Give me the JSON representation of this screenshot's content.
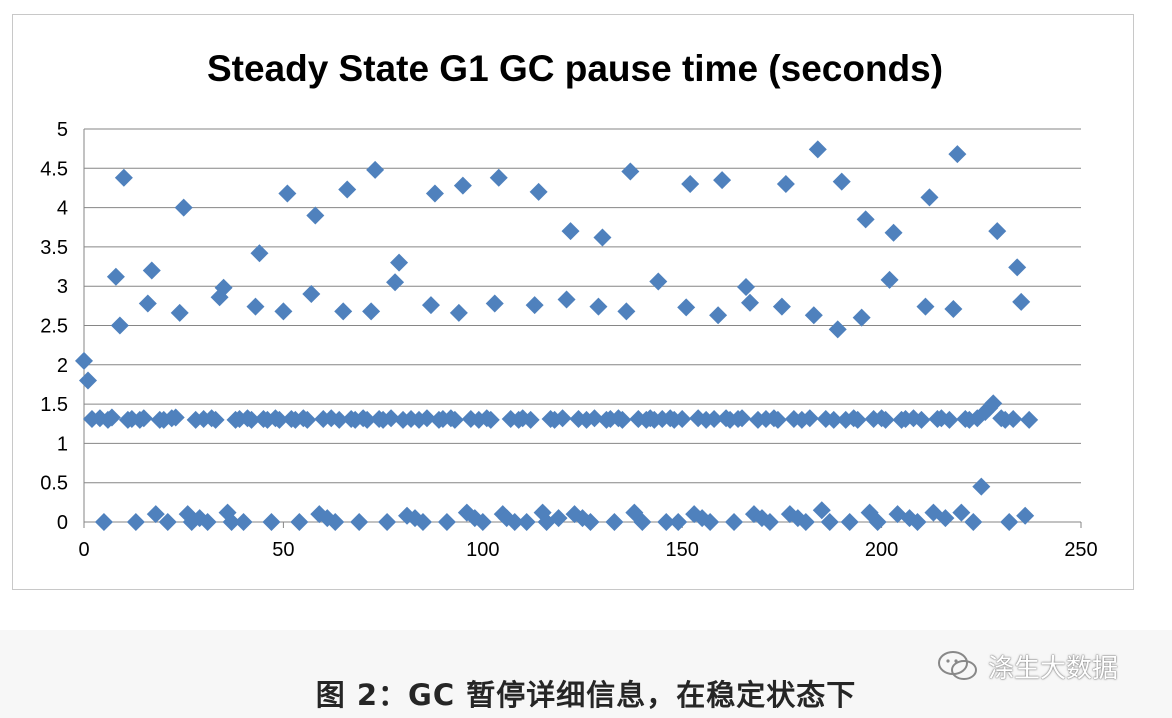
{
  "caption": "图 2：GC 暂停详细信息，在稳定状态下",
  "watermark": {
    "text": "涤生大数据",
    "icon": "wechat-bubble-icon"
  },
  "colors": {
    "marker": "#4f81bd",
    "grid": "#868686",
    "text": "#000000"
  },
  "chart_data": {
    "type": "scatter",
    "title": "Steady State G1 GC pause time (seconds)",
    "xlabel": "",
    "ylabel": "",
    "xlim": [
      0,
      250
    ],
    "ylim": [
      0,
      5
    ],
    "xticks": [
      "0",
      "50",
      "100",
      "150",
      "200",
      "250"
    ],
    "yticks": [
      "0",
      "0.5",
      "1",
      "1.5",
      "2",
      "2.5",
      "3",
      "3.5",
      "4",
      "4.5",
      "5"
    ],
    "grid": "horizontal",
    "legend": "none",
    "marker": "diamond",
    "series": [
      {
        "name": "",
        "points": [
          [
            0,
            2.05
          ],
          [
            1,
            1.8
          ],
          [
            2,
            1.31
          ],
          [
            4,
            1.32
          ],
          [
            5,
            0.0
          ],
          [
            6,
            1.3
          ],
          [
            7,
            1.33
          ],
          [
            8,
            3.12
          ],
          [
            9,
            2.5
          ],
          [
            10,
            4.38
          ],
          [
            11,
            1.3
          ],
          [
            12,
            1.31
          ],
          [
            13,
            0.0
          ],
          [
            14,
            1.3
          ],
          [
            15,
            1.32
          ],
          [
            16,
            2.78
          ],
          [
            17,
            3.2
          ],
          [
            18,
            0.1
          ],
          [
            19,
            1.3
          ],
          [
            20,
            1.3
          ],
          [
            21,
            0.0
          ],
          [
            22,
            1.32
          ],
          [
            23,
            1.33
          ],
          [
            24,
            2.66
          ],
          [
            25,
            4.0
          ],
          [
            26,
            0.1
          ],
          [
            27,
            0.0
          ],
          [
            28,
            1.3
          ],
          [
            29,
            0.05
          ],
          [
            30,
            1.31
          ],
          [
            31,
            0.0
          ],
          [
            32,
            1.32
          ],
          [
            33,
            1.3
          ],
          [
            34,
            2.86
          ],
          [
            35,
            2.98
          ],
          [
            36,
            0.12
          ],
          [
            37,
            0.0
          ],
          [
            38,
            1.3
          ],
          [
            39,
            1.31
          ],
          [
            40,
            0.0
          ],
          [
            41,
            1.32
          ],
          [
            42,
            1.3
          ],
          [
            43,
            2.74
          ],
          [
            44,
            3.42
          ],
          [
            45,
            1.31
          ],
          [
            46,
            1.3
          ],
          [
            47,
            0.0
          ],
          [
            48,
            1.32
          ],
          [
            49,
            1.3
          ],
          [
            50,
            2.68
          ],
          [
            51,
            4.18
          ],
          [
            52,
            1.31
          ],
          [
            53,
            1.3
          ],
          [
            54,
            0.0
          ],
          [
            55,
            1.32
          ],
          [
            56,
            1.3
          ],
          [
            57,
            2.9
          ],
          [
            58,
            3.9
          ],
          [
            59,
            0.1
          ],
          [
            60,
            1.31
          ],
          [
            61,
            0.05
          ],
          [
            62,
            1.32
          ],
          [
            63,
            0.0
          ],
          [
            64,
            1.3
          ],
          [
            65,
            2.68
          ],
          [
            66,
            4.23
          ],
          [
            67,
            1.31
          ],
          [
            68,
            1.3
          ],
          [
            69,
            0.0
          ],
          [
            70,
            1.32
          ],
          [
            71,
            1.3
          ],
          [
            72,
            2.68
          ],
          [
            73,
            4.48
          ],
          [
            74,
            1.31
          ],
          [
            75,
            1.3
          ],
          [
            76,
            0.0
          ],
          [
            77,
            1.32
          ],
          [
            78,
            3.05
          ],
          [
            79,
            3.3
          ],
          [
            80,
            1.3
          ],
          [
            81,
            0.08
          ],
          [
            82,
            1.31
          ],
          [
            83,
            0.05
          ],
          [
            84,
            1.3
          ],
          [
            85,
            0.0
          ],
          [
            86,
            1.32
          ],
          [
            87,
            2.76
          ],
          [
            88,
            4.18
          ],
          [
            89,
            1.3
          ],
          [
            90,
            1.31
          ],
          [
            91,
            0.0
          ],
          [
            92,
            1.32
          ],
          [
            93,
            1.3
          ],
          [
            94,
            2.66
          ],
          [
            95,
            4.28
          ],
          [
            96,
            0.12
          ],
          [
            97,
            1.31
          ],
          [
            98,
            0.05
          ],
          [
            99,
            1.3
          ],
          [
            100,
            0.0
          ],
          [
            101,
            1.32
          ],
          [
            102,
            1.3
          ],
          [
            103,
            2.78
          ],
          [
            104,
            4.38
          ],
          [
            105,
            0.1
          ],
          [
            106,
            0.05
          ],
          [
            107,
            1.31
          ],
          [
            108,
            0.0
          ],
          [
            109,
            1.3
          ],
          [
            110,
            1.32
          ],
          [
            111,
            0.0
          ],
          [
            112,
            1.3
          ],
          [
            113,
            2.76
          ],
          [
            114,
            4.2
          ],
          [
            115,
            0.12
          ],
          [
            116,
            0.0
          ],
          [
            117,
            1.31
          ],
          [
            118,
            1.3
          ],
          [
            119,
            0.05
          ],
          [
            120,
            1.32
          ],
          [
            121,
            2.83
          ],
          [
            122,
            3.7
          ],
          [
            123,
            0.1
          ],
          [
            124,
            1.31
          ],
          [
            125,
            0.05
          ],
          [
            126,
            1.3
          ],
          [
            127,
            0.0
          ],
          [
            128,
            1.32
          ],
          [
            129,
            2.74
          ],
          [
            130,
            3.62
          ],
          [
            131,
            1.3
          ],
          [
            132,
            1.31
          ],
          [
            133,
            0.0
          ],
          [
            134,
            1.32
          ],
          [
            135,
            1.3
          ],
          [
            136,
            2.68
          ],
          [
            137,
            4.46
          ],
          [
            138,
            0.12
          ],
          [
            139,
            1.31
          ],
          [
            140,
            0.0
          ],
          [
            141,
            1.3
          ],
          [
            142,
            1.32
          ],
          [
            143,
            1.3
          ],
          [
            144,
            3.06
          ],
          [
            145,
            1.31
          ],
          [
            146,
            0.0
          ],
          [
            147,
            1.32
          ],
          [
            148,
            1.3
          ],
          [
            149,
            0.0
          ],
          [
            150,
            1.31
          ],
          [
            151,
            2.73
          ],
          [
            152,
            4.3
          ],
          [
            153,
            0.1
          ],
          [
            154,
            1.32
          ],
          [
            155,
            0.05
          ],
          [
            156,
            1.3
          ],
          [
            157,
            0.0
          ],
          [
            158,
            1.31
          ],
          [
            159,
            2.63
          ],
          [
            160,
            4.35
          ],
          [
            161,
            1.32
          ],
          [
            162,
            1.3
          ],
          [
            163,
            0.0
          ],
          [
            164,
            1.31
          ],
          [
            165,
            1.32
          ],
          [
            166,
            2.99
          ],
          [
            167,
            2.79
          ],
          [
            168,
            0.1
          ],
          [
            169,
            1.3
          ],
          [
            170,
            0.05
          ],
          [
            171,
            1.31
          ],
          [
            172,
            0.0
          ],
          [
            173,
            1.32
          ],
          [
            174,
            1.3
          ],
          [
            175,
            2.74
          ],
          [
            176,
            4.3
          ],
          [
            177,
            0.1
          ],
          [
            178,
            1.31
          ],
          [
            179,
            0.05
          ],
          [
            180,
            1.3
          ],
          [
            181,
            0.0
          ],
          [
            182,
            1.32
          ],
          [
            183,
            2.63
          ],
          [
            184,
            4.74
          ],
          [
            185,
            0.15
          ],
          [
            186,
            1.31
          ],
          [
            187,
            0.0
          ],
          [
            188,
            1.3
          ],
          [
            189,
            2.45
          ],
          [
            190,
            4.33
          ],
          [
            191,
            1.3
          ],
          [
            192,
            0.0
          ],
          [
            193,
            1.32
          ],
          [
            194,
            1.3
          ],
          [
            195,
            2.6
          ],
          [
            196,
            3.85
          ],
          [
            197,
            0.12
          ],
          [
            198,
            1.31
          ],
          [
            199,
            0.0
          ],
          [
            200,
            1.32
          ],
          [
            201,
            1.3
          ],
          [
            202,
            3.08
          ],
          [
            203,
            3.68
          ],
          [
            204,
            0.1
          ],
          [
            205,
            1.3
          ],
          [
            206,
            1.31
          ],
          [
            207,
            0.05
          ],
          [
            208,
            1.32
          ],
          [
            209,
            0.0
          ],
          [
            210,
            1.3
          ],
          [
            211,
            2.74
          ],
          [
            212,
            4.13
          ],
          [
            213,
            0.12
          ],
          [
            214,
            1.31
          ],
          [
            215,
            1.32
          ],
          [
            216,
            0.05
          ],
          [
            217,
            1.3
          ],
          [
            218,
            2.71
          ],
          [
            219,
            4.68
          ],
          [
            220,
            0.12
          ],
          [
            221,
            1.31
          ],
          [
            222,
            1.3
          ],
          [
            223,
            0.0
          ],
          [
            224,
            1.32
          ],
          [
            225,
            0.45
          ],
          [
            226,
            1.4
          ],
          [
            227,
            1.45
          ],
          [
            228,
            1.51
          ],
          [
            229,
            3.7
          ],
          [
            230,
            1.32
          ],
          [
            231,
            1.3
          ],
          [
            232,
            0.0
          ],
          [
            233,
            1.31
          ],
          [
            234,
            3.24
          ],
          [
            235,
            2.8
          ],
          [
            236,
            0.08
          ],
          [
            237,
            1.3
          ]
        ]
      }
    ]
  }
}
